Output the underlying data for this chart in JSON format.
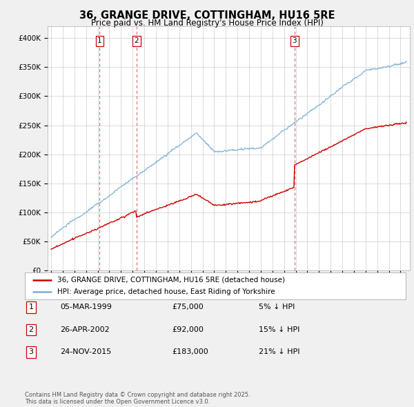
{
  "title": "36, GRANGE DRIVE, COTTINGHAM, HU16 5RE",
  "subtitle": "Price paid vs. HM Land Registry's House Price Index (HPI)",
  "legend_line1": "36, GRANGE DRIVE, COTTINGHAM, HU16 5RE (detached house)",
  "legend_line2": "HPI: Average price, detached house, East Riding of Yorkshire",
  "sale_color": "#cc0000",
  "hpi_color": "#7bafd4",
  "vline_color": "#cc0000",
  "ylim": [
    0,
    420000
  ],
  "yticks": [
    0,
    50000,
    100000,
    150000,
    200000,
    250000,
    300000,
    350000,
    400000
  ],
  "ytick_labels": [
    "£0",
    "£50K",
    "£100K",
    "£150K",
    "£200K",
    "£250K",
    "£300K",
    "£350K",
    "£400K"
  ],
  "transactions": [
    {
      "date": "05-MAR-1999",
      "price": 75000,
      "price_str": "£75,000",
      "pct": "5%",
      "label": "1",
      "year": 1999.17
    },
    {
      "date": "26-APR-2002",
      "price": 92000,
      "price_str": "£92,000",
      "pct": "15%",
      "label": "2",
      "year": 2002.32
    },
    {
      "date": "24-NOV-2015",
      "price": 183000,
      "price_str": "£183,000",
      "pct": "21%",
      "label": "3",
      "year": 2015.9
    }
  ],
  "copyright_text": "Contains HM Land Registry data © Crown copyright and database right 2025.\nThis data is licensed under the Open Government Licence v3.0.",
  "background_color": "#f0f0f0",
  "plot_bg_color": "#ffffff",
  "grid_color": "#cccccc",
  "xmin": 1995,
  "xmax": 2025
}
